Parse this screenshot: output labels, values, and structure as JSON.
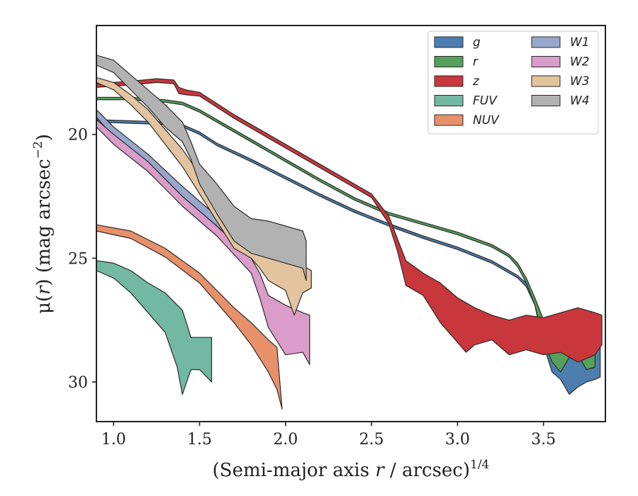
{
  "chart_data": {
    "type": "area",
    "x_axis": {
      "label": "(Semi-major axis r / arcsec)",
      "label_parts": [
        "(Semi-major axis ",
        "r",
        " / arcsec)",
        "1/4"
      ],
      "range": [
        0.9,
        3.86
      ],
      "ticks": [
        1.0,
        1.5,
        2.0,
        2.5,
        3.0,
        3.5
      ],
      "tick_labels": [
        "1.0",
        "1.5",
        "2.0",
        "2.5",
        "3.0",
        "3.5"
      ]
    },
    "y_axis": {
      "label": "μ(r) (mag arcsec−2)",
      "label_parts": [
        "μ(",
        "r",
        ") (mag arcsec",
        "−2",
        ")"
      ],
      "range": [
        31.6,
        15.6
      ],
      "inverted": true,
      "ticks": [
        20,
        25,
        30
      ],
      "tick_labels": [
        "20",
        "25",
        "30"
      ]
    },
    "grid": false,
    "legend": {
      "placement": "top-right",
      "columns": 2
    },
    "series": [
      {
        "name": "g",
        "color": "#4c7fb0",
        "upper": [
          [
            0.9,
            19.4
          ],
          [
            1.1,
            19.45
          ],
          [
            1.3,
            19.5
          ],
          [
            1.4,
            19.6
          ],
          [
            1.5,
            19.9
          ],
          [
            1.6,
            20.35
          ],
          [
            1.8,
            21.0
          ],
          [
            2.0,
            21.7
          ],
          [
            2.2,
            22.4
          ],
          [
            2.4,
            23.05
          ],
          [
            2.6,
            23.6
          ],
          [
            2.8,
            24.1
          ],
          [
            3.0,
            24.55
          ],
          [
            3.2,
            25.1
          ],
          [
            3.3,
            25.5
          ],
          [
            3.35,
            25.7
          ],
          [
            3.4,
            26.0
          ],
          [
            3.45,
            26.6
          ],
          [
            3.5,
            27.5
          ],
          [
            3.55,
            28.3
          ],
          [
            3.6,
            28.1
          ],
          [
            3.7,
            28.4
          ],
          [
            3.75,
            28.6
          ],
          [
            3.8,
            28.5
          ],
          [
            3.83,
            28.6
          ]
        ],
        "lower": [
          [
            0.9,
            19.5
          ],
          [
            1.1,
            19.55
          ],
          [
            1.3,
            19.6
          ],
          [
            1.4,
            19.7
          ],
          [
            1.5,
            20.0
          ],
          [
            1.6,
            20.45
          ],
          [
            1.8,
            21.1
          ],
          [
            2.0,
            21.8
          ],
          [
            2.2,
            22.5
          ],
          [
            2.4,
            23.15
          ],
          [
            2.6,
            23.7
          ],
          [
            2.8,
            24.2
          ],
          [
            3.0,
            24.65
          ],
          [
            3.2,
            25.2
          ],
          [
            3.3,
            25.6
          ],
          [
            3.35,
            25.8
          ],
          [
            3.4,
            26.15
          ],
          [
            3.45,
            26.9
          ],
          [
            3.5,
            28.5
          ],
          [
            3.55,
            29.6
          ],
          [
            3.6,
            29.9
          ],
          [
            3.65,
            30.5
          ],
          [
            3.7,
            30.2
          ],
          [
            3.75,
            30.0
          ],
          [
            3.8,
            29.9
          ],
          [
            3.83,
            29.8
          ]
        ]
      },
      {
        "name": "r",
        "color": "#55a05a",
        "upper": [
          [
            0.9,
            18.5
          ],
          [
            1.1,
            18.5
          ],
          [
            1.3,
            18.6
          ],
          [
            1.4,
            18.7
          ],
          [
            1.5,
            19.0
          ],
          [
            1.6,
            19.4
          ],
          [
            1.8,
            20.2
          ],
          [
            2.0,
            21.0
          ],
          [
            2.2,
            21.8
          ],
          [
            2.4,
            22.55
          ],
          [
            2.6,
            23.15
          ],
          [
            2.8,
            23.55
          ],
          [
            3.0,
            23.95
          ],
          [
            3.2,
            24.45
          ],
          [
            3.3,
            24.85
          ],
          [
            3.35,
            25.2
          ],
          [
            3.4,
            25.8
          ],
          [
            3.45,
            26.6
          ],
          [
            3.5,
            27.5
          ],
          [
            3.55,
            27.9
          ],
          [
            3.6,
            27.6
          ],
          [
            3.65,
            27.5
          ],
          [
            3.7,
            27.3
          ],
          [
            3.75,
            27.7
          ],
          [
            3.8,
            27.8
          ]
        ],
        "lower": [
          [
            0.9,
            18.6
          ],
          [
            1.1,
            18.6
          ],
          [
            1.3,
            18.7
          ],
          [
            1.4,
            18.8
          ],
          [
            1.5,
            19.1
          ],
          [
            1.6,
            19.5
          ],
          [
            1.8,
            20.3
          ],
          [
            2.0,
            21.1
          ],
          [
            2.2,
            21.9
          ],
          [
            2.4,
            22.65
          ],
          [
            2.6,
            23.25
          ],
          [
            2.8,
            23.65
          ],
          [
            3.0,
            24.05
          ],
          [
            3.2,
            24.55
          ],
          [
            3.3,
            24.95
          ],
          [
            3.35,
            25.35
          ],
          [
            3.4,
            26.0
          ],
          [
            3.45,
            26.9
          ],
          [
            3.5,
            28.3
          ],
          [
            3.55,
            29.2
          ],
          [
            3.6,
            29.6
          ],
          [
            3.65,
            29.0
          ],
          [
            3.7,
            28.9
          ],
          [
            3.75,
            29.5
          ],
          [
            3.8,
            29.4
          ]
        ]
      },
      {
        "name": "z",
        "color": "#c8373b",
        "upper": [
          [
            0.9,
            17.95
          ],
          [
            1.1,
            17.85
          ],
          [
            1.25,
            17.75
          ],
          [
            1.35,
            17.8
          ],
          [
            1.38,
            18.1
          ],
          [
            1.42,
            18.2
          ],
          [
            1.5,
            18.3
          ],
          [
            1.7,
            19.2
          ],
          [
            1.9,
            20.0
          ],
          [
            2.1,
            20.8
          ],
          [
            2.3,
            21.6
          ],
          [
            2.5,
            22.4
          ],
          [
            2.6,
            23.3
          ],
          [
            2.65,
            24.2
          ],
          [
            2.7,
            25.1
          ],
          [
            2.8,
            25.6
          ],
          [
            2.9,
            26.0
          ],
          [
            3.0,
            26.6
          ],
          [
            3.1,
            27.0
          ],
          [
            3.2,
            27.3
          ],
          [
            3.3,
            27.5
          ],
          [
            3.4,
            27.3
          ],
          [
            3.5,
            27.4
          ],
          [
            3.6,
            27.2
          ],
          [
            3.7,
            27.0
          ],
          [
            3.8,
            27.2
          ],
          [
            3.84,
            27.3
          ]
        ],
        "lower": [
          [
            0.9,
            18.1
          ],
          [
            1.1,
            18.0
          ],
          [
            1.25,
            17.9
          ],
          [
            1.35,
            17.95
          ],
          [
            1.38,
            18.35
          ],
          [
            1.42,
            18.4
          ],
          [
            1.5,
            18.45
          ],
          [
            1.7,
            19.35
          ],
          [
            1.9,
            20.15
          ],
          [
            2.1,
            20.95
          ],
          [
            2.3,
            21.75
          ],
          [
            2.5,
            22.55
          ],
          [
            2.6,
            23.6
          ],
          [
            2.65,
            24.7
          ],
          [
            2.7,
            26.1
          ],
          [
            2.8,
            26.5
          ],
          [
            2.9,
            27.6
          ],
          [
            3.0,
            28.4
          ],
          [
            3.05,
            28.8
          ],
          [
            3.1,
            28.5
          ],
          [
            3.2,
            28.3
          ],
          [
            3.3,
            28.9
          ],
          [
            3.4,
            28.7
          ],
          [
            3.5,
            28.9
          ],
          [
            3.6,
            28.8
          ],
          [
            3.7,
            29.2
          ],
          [
            3.8,
            28.9
          ],
          [
            3.84,
            28.5
          ]
        ]
      },
      {
        "name": "FUV",
        "color": "#72b8a2",
        "upper": [
          [
            0.9,
            25.1
          ],
          [
            1.0,
            25.2
          ],
          [
            1.1,
            25.5
          ],
          [
            1.2,
            26.0
          ],
          [
            1.3,
            26.4
          ],
          [
            1.4,
            27.1
          ],
          [
            1.45,
            28.2
          ],
          [
            1.5,
            28.2
          ],
          [
            1.57,
            28.2
          ]
        ],
        "lower": [
          [
            0.9,
            25.5
          ],
          [
            1.0,
            25.8
          ],
          [
            1.1,
            26.4
          ],
          [
            1.2,
            27.2
          ],
          [
            1.3,
            28.0
          ],
          [
            1.37,
            29.4
          ],
          [
            1.4,
            30.5
          ],
          [
            1.45,
            29.5
          ],
          [
            1.5,
            29.5
          ],
          [
            1.57,
            30.0
          ]
        ]
      },
      {
        "name": "NUV",
        "color": "#e8906a",
        "upper": [
          [
            0.9,
            23.65
          ],
          [
            1.1,
            23.9
          ],
          [
            1.3,
            24.6
          ],
          [
            1.5,
            25.6
          ],
          [
            1.6,
            26.3
          ],
          [
            1.7,
            27.0
          ],
          [
            1.8,
            27.6
          ],
          [
            1.9,
            28.3
          ],
          [
            1.95,
            28.6
          ]
        ],
        "lower": [
          [
            0.9,
            23.9
          ],
          [
            1.1,
            24.2
          ],
          [
            1.3,
            24.95
          ],
          [
            1.5,
            26.0
          ],
          [
            1.6,
            26.8
          ],
          [
            1.7,
            27.6
          ],
          [
            1.8,
            28.5
          ],
          [
            1.9,
            29.6
          ],
          [
            1.95,
            30.3
          ],
          [
            1.98,
            31.1
          ]
        ]
      },
      {
        "name": "W1",
        "color": "#98a8cc",
        "upper": [
          [
            0.9,
            19.0
          ],
          [
            1.0,
            19.7
          ],
          [
            1.2,
            20.8
          ],
          [
            1.4,
            22.1
          ],
          [
            1.6,
            23.3
          ],
          [
            1.8,
            24.5
          ],
          [
            1.9,
            25.0
          ],
          [
            2.0,
            25.4
          ],
          [
            2.1,
            25.6
          ],
          [
            2.14,
            25.7
          ]
        ],
        "lower": [
          [
            0.9,
            19.3
          ],
          [
            1.0,
            20.1
          ],
          [
            1.2,
            21.2
          ],
          [
            1.4,
            22.5
          ],
          [
            1.6,
            23.7
          ],
          [
            1.8,
            24.9
          ],
          [
            1.9,
            25.4
          ],
          [
            2.0,
            25.8
          ],
          [
            2.1,
            26.0
          ],
          [
            2.14,
            26.1
          ]
        ]
      },
      {
        "name": "W2",
        "color": "#da9cc8",
        "upper": [
          [
            0.9,
            19.4
          ],
          [
            1.0,
            20.0
          ],
          [
            1.2,
            21.1
          ],
          [
            1.4,
            22.5
          ],
          [
            1.6,
            23.7
          ],
          [
            1.8,
            25.0
          ],
          [
            1.85,
            25.6
          ],
          [
            1.9,
            26.5
          ],
          [
            2.0,
            26.9
          ],
          [
            2.1,
            27.2
          ],
          [
            2.14,
            27.3
          ]
        ],
        "lower": [
          [
            0.9,
            19.7
          ],
          [
            1.0,
            20.4
          ],
          [
            1.2,
            21.5
          ],
          [
            1.4,
            22.9
          ],
          [
            1.6,
            24.1
          ],
          [
            1.8,
            25.6
          ],
          [
            1.85,
            26.6
          ],
          [
            1.9,
            27.8
          ],
          [
            2.0,
            28.9
          ],
          [
            2.1,
            28.8
          ],
          [
            2.14,
            29.3
          ]
        ]
      },
      {
        "name": "W3",
        "color": "#e3c49e",
        "upper": [
          [
            0.9,
            17.7
          ],
          [
            1.0,
            17.9
          ],
          [
            1.1,
            18.4
          ],
          [
            1.2,
            19.0
          ],
          [
            1.4,
            20.6
          ],
          [
            1.6,
            22.6
          ],
          [
            1.7,
            23.5
          ],
          [
            1.8,
            24.2
          ],
          [
            1.85,
            24.0
          ],
          [
            1.9,
            24.3
          ],
          [
            2.0,
            24.7
          ],
          [
            2.1,
            25.3
          ],
          [
            2.15,
            25.5
          ]
        ],
        "lower": [
          [
            0.9,
            17.9
          ],
          [
            1.0,
            18.2
          ],
          [
            1.1,
            18.8
          ],
          [
            1.2,
            19.5
          ],
          [
            1.4,
            21.3
          ],
          [
            1.6,
            23.5
          ],
          [
            1.7,
            24.6
          ],
          [
            1.8,
            25.0
          ],
          [
            1.85,
            25.4
          ],
          [
            1.9,
            25.9
          ],
          [
            2.0,
            26.3
          ],
          [
            2.05,
            27.3
          ],
          [
            2.1,
            26.4
          ],
          [
            2.15,
            26.2
          ]
        ]
      },
      {
        "name": "W4",
        "color": "#b2b2b2",
        "upper": [
          [
            0.9,
            16.8
          ],
          [
            1.0,
            17.0
          ],
          [
            1.1,
            17.6
          ],
          [
            1.2,
            18.2
          ],
          [
            1.3,
            18.8
          ],
          [
            1.4,
            19.5
          ],
          [
            1.45,
            20.3
          ],
          [
            1.5,
            21.2
          ],
          [
            1.6,
            22.0
          ],
          [
            1.7,
            22.9
          ],
          [
            1.8,
            23.4
          ],
          [
            1.9,
            23.5
          ],
          [
            2.0,
            23.7
          ],
          [
            2.1,
            23.9
          ],
          [
            2.12,
            24.3
          ]
        ],
        "lower": [
          [
            0.9,
            17.2
          ],
          [
            1.0,
            17.5
          ],
          [
            1.1,
            18.2
          ],
          [
            1.2,
            18.9
          ],
          [
            1.3,
            19.7
          ],
          [
            1.4,
            20.3
          ],
          [
            1.45,
            21.0
          ],
          [
            1.5,
            22.0
          ],
          [
            1.6,
            23.2
          ],
          [
            1.7,
            24.3
          ],
          [
            1.8,
            24.8
          ],
          [
            1.9,
            25.0
          ],
          [
            2.0,
            25.2
          ],
          [
            2.1,
            25.4
          ],
          [
            2.12,
            25.9
          ]
        ]
      }
    ]
  }
}
